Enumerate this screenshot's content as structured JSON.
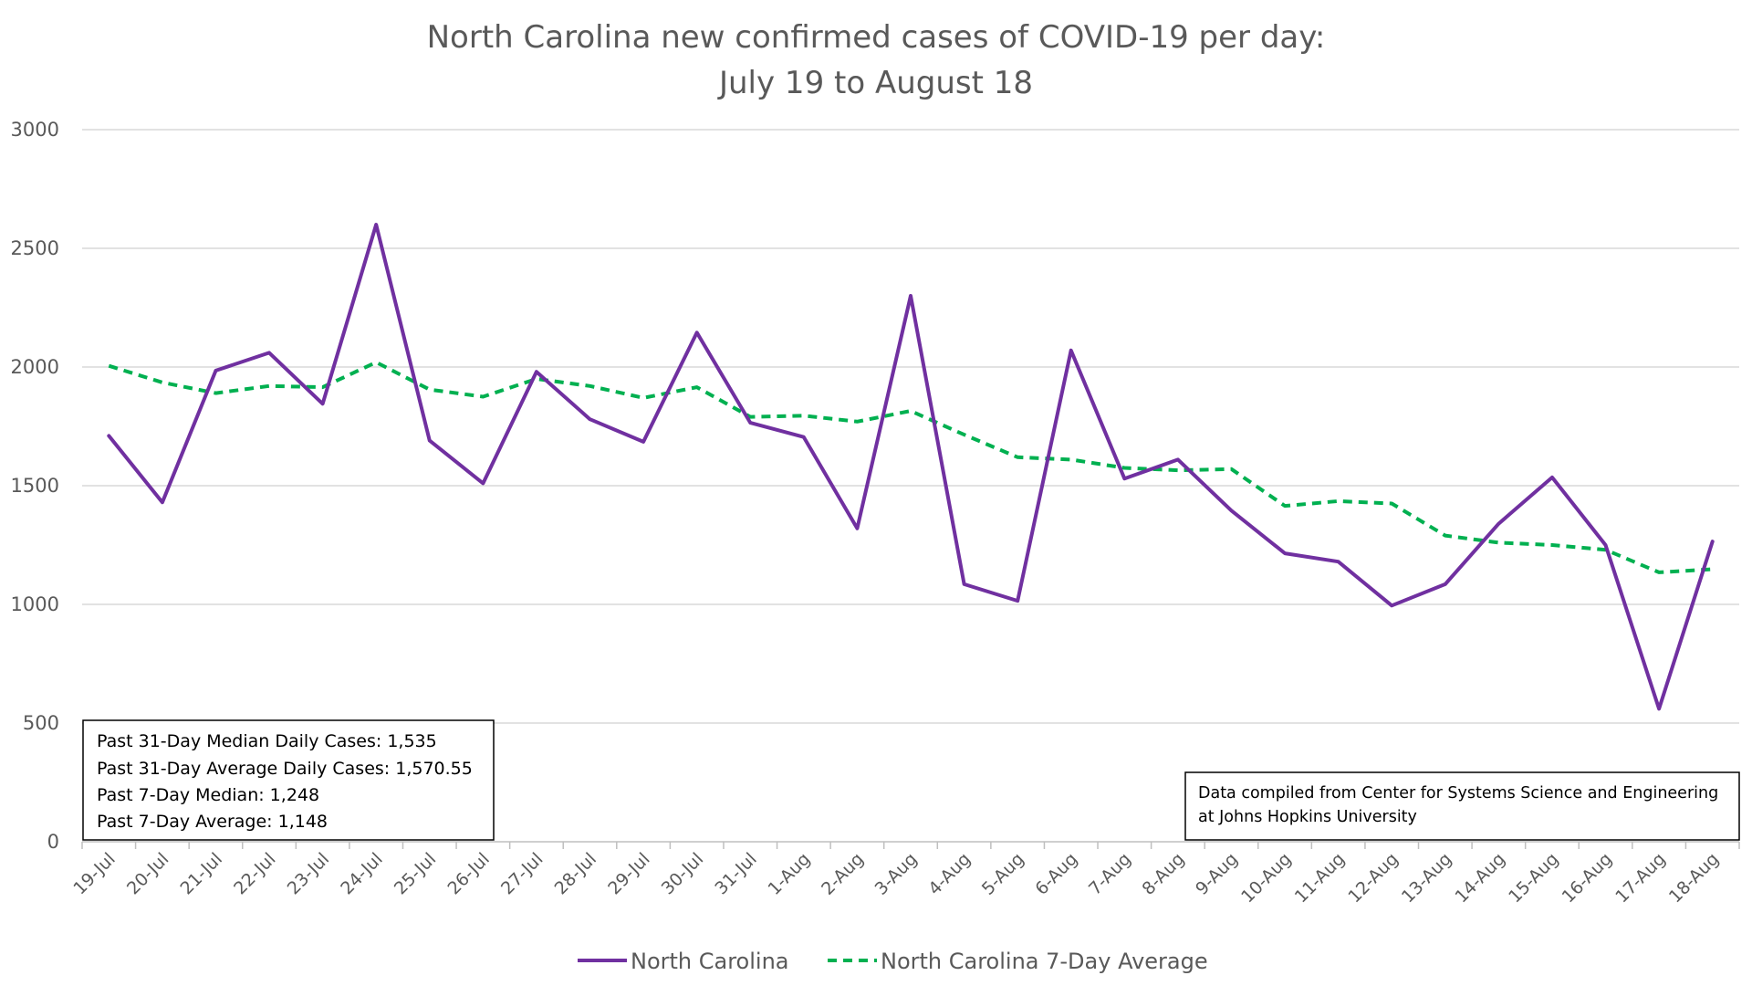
{
  "chart_data": {
    "type": "line",
    "title": "North Carolina new confirmed cases of COVID-19 per day:",
    "subtitle": "July 19 to August 18",
    "xlabel": "",
    "ylabel": "",
    "ylim": [
      0,
      3000
    ],
    "yticks": [
      0,
      500,
      1000,
      1500,
      2000,
      2500,
      3000
    ],
    "grid": true,
    "legend_position": "bottom",
    "categories": [
      "19-Jul",
      "20-Jul",
      "21-Jul",
      "22-Jul",
      "23-Jul",
      "24-Jul",
      "25-Jul",
      "26-Jul",
      "27-Jul",
      "28-Jul",
      "29-Jul",
      "30-Jul",
      "31-Jul",
      "1-Aug",
      "2-Aug",
      "3-Aug",
      "4-Aug",
      "5-Aug",
      "6-Aug",
      "7-Aug",
      "8-Aug",
      "9-Aug",
      "10-Aug",
      "11-Aug",
      "12-Aug",
      "13-Aug",
      "14-Aug",
      "15-Aug",
      "16-Aug",
      "17-Aug",
      "18-Aug"
    ],
    "series": [
      {
        "name": "North Carolina",
        "color": "#7030A0",
        "dash": "solid",
        "values": [
          1710,
          1430,
          1985,
          2060,
          1845,
          2600,
          1690,
          1510,
          1980,
          1780,
          1685,
          2145,
          1765,
          1705,
          1320,
          2300,
          1085,
          1015,
          2070,
          1530,
          1610,
          1395,
          1215,
          1180,
          995,
          1085,
          1340,
          1535,
          1250,
          560,
          1265
        ]
      },
      {
        "name": "North Carolina 7-Day Average",
        "color": "#00B050",
        "dash": "dashed",
        "values": [
          2005,
          1935,
          1890,
          1920,
          1915,
          2020,
          1905,
          1875,
          1950,
          1920,
          1870,
          1915,
          1790,
          1795,
          1770,
          1815,
          1715,
          1620,
          1610,
          1575,
          1565,
          1570,
          1415,
          1435,
          1425,
          1290,
          1260,
          1250,
          1230,
          1135,
          1148
        ]
      }
    ]
  },
  "stats_box": {
    "lines": [
      "Past 31-Day Median Daily Cases: 1,535",
      "Past 31-Day Average Daily Cases: 1,570.55",
      "Past 7-Day Median: 1,248",
      "Past 7-Day Average: 1,148"
    ]
  },
  "source_box": {
    "lines": [
      "Data compiled from Center for Systems Science and Engineering",
      "at Johns Hopkins University"
    ]
  }
}
